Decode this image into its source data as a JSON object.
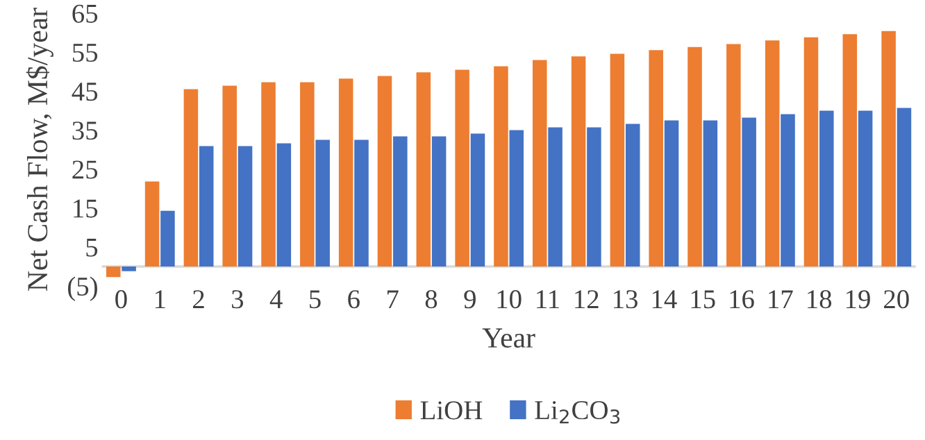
{
  "chart_data": {
    "type": "bar",
    "xlabel": "Year",
    "ylabel": "Net Cash Flow, M$/year",
    "categories": [
      "0",
      "1",
      "2",
      "3",
      "4",
      "5",
      "6",
      "7",
      "8",
      "9",
      "10",
      "11",
      "12",
      "13",
      "14",
      "15",
      "16",
      "17",
      "18",
      "19",
      "20"
    ],
    "series": [
      {
        "name": "LiOH",
        "color": "#ed7d31",
        "values": [
          -2.7,
          21.8,
          45.5,
          46.4,
          47.3,
          47.3,
          48.2,
          48.9,
          49.8,
          50.5,
          51.4,
          53.0,
          53.9,
          54.6,
          55.5,
          56.3,
          57.1,
          58.0,
          58.8,
          59.6,
          60.4
        ]
      },
      {
        "name": "Li$_{2}$CO$_{3}$",
        "color": "#4472c4",
        "values": [
          -1.2,
          14.3,
          30.9,
          30.9,
          31.6,
          32.5,
          32.5,
          33.4,
          33.4,
          34.1,
          35.0,
          35.7,
          35.7,
          36.6,
          37.5,
          37.5,
          38.2,
          39.1,
          40.0,
          40.0,
          40.7
        ]
      }
    ],
    "ylim": [
      -5,
      65
    ],
    "yticks": [
      {
        "value": -5,
        "label": "(5)"
      },
      5,
      15,
      25,
      35,
      45,
      55,
      65
    ],
    "grid": false,
    "legend": "bottom"
  }
}
